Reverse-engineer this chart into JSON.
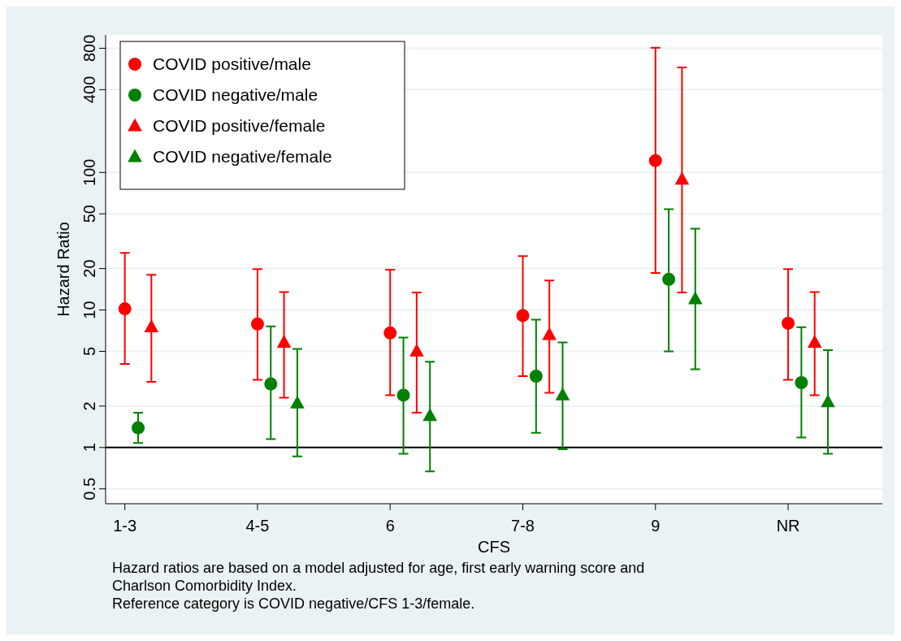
{
  "chart_data": {
    "type": "scatter",
    "xlabel": "CFS",
    "ylabel": "Hazard Ratio",
    "categories": [
      "1-3",
      "4-5",
      "6",
      "7-8",
      "9",
      "NR"
    ],
    "ylim": [
      0.39,
      1000
    ],
    "yticks": [
      0.5,
      1,
      2,
      5,
      10,
      20,
      50,
      100,
      400,
      800
    ],
    "log": true,
    "grid": "y",
    "legend": "top left",
    "ref_lines": [
      {
        "axis": "y",
        "value": 1,
        "color": "#000000"
      }
    ],
    "series": [
      {
        "name": "COVID positive/male",
        "color": "#ff0000",
        "marker": "circle",
        "values": [
          10.2,
          7.9,
          6.8,
          9.1,
          122,
          8.0
        ],
        "errors": [
          [
            4.05,
            26
          ],
          [
            3.1,
            19.8
          ],
          [
            2.4,
            19.6
          ],
          [
            3.3,
            24.6
          ],
          [
            18.6,
            807
          ],
          [
            3.1,
            19.8
          ]
        ]
      },
      {
        "name": "COVID negative/male",
        "color": "#008000",
        "marker": "circle",
        "values": [
          1.39,
          2.9,
          2.4,
          3.3,
          16.7,
          2.96
        ],
        "errors": [
          [
            1.08,
            1.79
          ],
          [
            1.15,
            7.6
          ],
          [
            0.9,
            6.3
          ],
          [
            1.28,
            8.5
          ],
          [
            5.0,
            54
          ],
          [
            1.18,
            7.5
          ]
        ]
      },
      {
        "name": "COVID positive/female",
        "color": "#ff0000",
        "marker": "triangle",
        "values": [
          7.5,
          5.8,
          5.0,
          6.6,
          89,
          5.8
        ],
        "errors": [
          [
            3.0,
            18
          ],
          [
            2.3,
            13.5
          ],
          [
            1.79,
            13.4
          ],
          [
            2.5,
            16.4
          ],
          [
            13.4,
            580
          ],
          [
            2.4,
            13.5
          ]
        ]
      },
      {
        "name": "COVID negative/female",
        "color": "#008000",
        "marker": "triangle",
        "values": [
          null,
          2.1,
          1.7,
          2.4,
          12,
          2.14
        ],
        "errors": [
          null,
          [
            0.86,
            5.2
          ],
          [
            0.67,
            4.2
          ],
          [
            0.97,
            5.8
          ],
          [
            3.7,
            39
          ],
          [
            0.9,
            5.1
          ]
        ]
      }
    ],
    "annotations": [
      "Hazard ratios are based on a model adjusted for age, first early warning score and Charlson Comorbidity Index.",
      "Reference category is COVID negative/CFS 1-3/female."
    ]
  }
}
